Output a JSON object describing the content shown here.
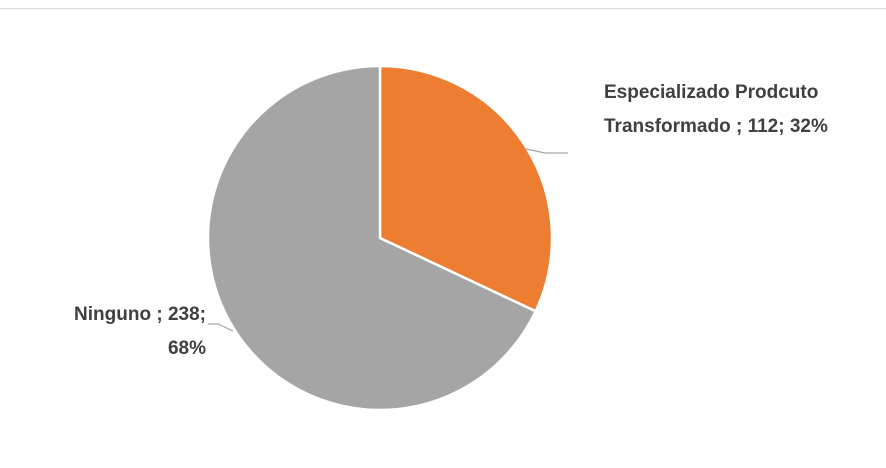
{
  "chart_data": {
    "type": "pie",
    "title": "",
    "slices": [
      {
        "label_lines": [
          "Especializado Prodcuto",
          "Transformado ; 112; 32%"
        ],
        "category": "Especializado Prodcuto Transformado",
        "value": 112,
        "percent": "32%",
        "color": "#ED7D31"
      },
      {
        "label_lines": [
          "Ninguno ; 238;",
          "68%"
        ],
        "category": "Ninguno",
        "value": 238,
        "percent": "68%",
        "color": "#A5A5A5"
      }
    ],
    "leader_line_color": "#A6A6A6",
    "slice_border_color": "#FFFFFF",
    "legend": "none"
  }
}
